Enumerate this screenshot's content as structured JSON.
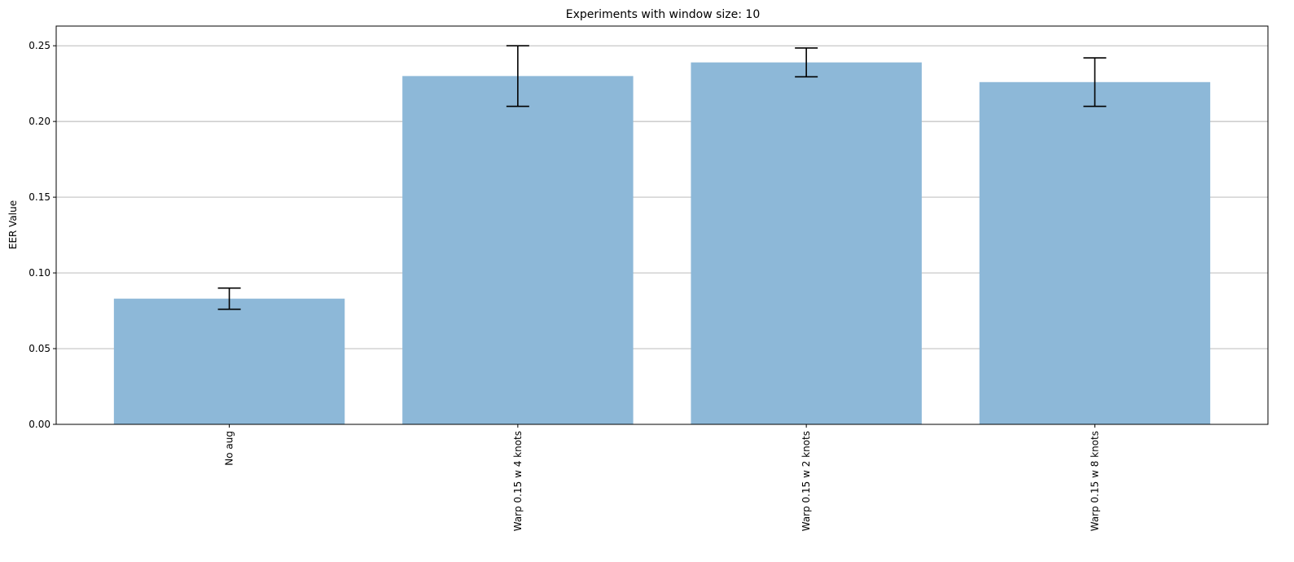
{
  "chart_data": {
    "type": "bar",
    "title": "Experiments with window size: 10",
    "xlabel": "",
    "ylabel": "EER Value",
    "categories": [
      "No aug",
      "Warp 0.15 w 4 knots",
      "Warp 0.15 w 2 knots",
      "Warp 0.15 w 8 knots"
    ],
    "values": [
      0.083,
      0.23,
      0.239,
      0.226
    ],
    "errors": [
      0.007,
      0.02,
      0.0095,
      0.016
    ],
    "ylim": [
      0,
      0.263
    ],
    "yticks": [
      0.0,
      0.05,
      0.1,
      0.15,
      0.2,
      0.25
    ],
    "ytick_labels": [
      "0.00",
      "0.05",
      "0.10",
      "0.15",
      "0.20",
      "0.25"
    ],
    "grid": "y-axis",
    "bar_color": "#8db8d8",
    "grid_color": "#b0b0b0",
    "errorbar_color": "#000000"
  }
}
